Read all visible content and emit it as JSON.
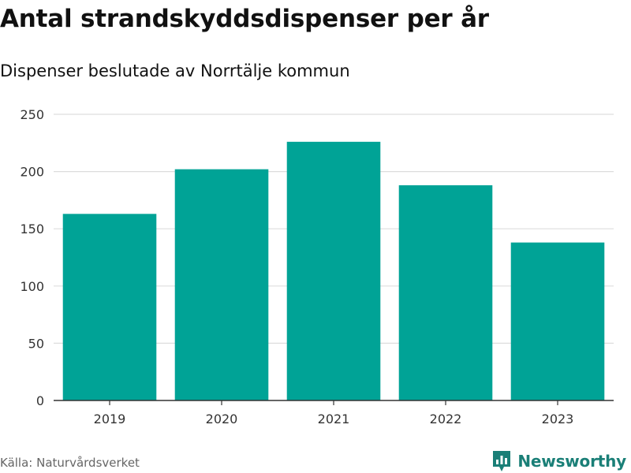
{
  "title": "Antal strandskyddsdispenser per år",
  "subtitle": "Dispenser beslutade av Norrtälje kommun",
  "source": "Källa: Naturvårdsverket",
  "brand": {
    "name": "Newsworthy",
    "color": "#1a7f77"
  },
  "colors": {
    "bar": "#00a396",
    "grid": "#dddddd",
    "axis": "#333333"
  },
  "chart_data": {
    "type": "bar",
    "title": "Antal strandskyddsdispenser per år",
    "subtitle": "Dispenser beslutade av Norrtälje kommun",
    "categories": [
      "2019",
      "2020",
      "2021",
      "2022",
      "2023"
    ],
    "values": [
      163,
      202,
      226,
      188,
      138
    ],
    "xlabel": "",
    "ylabel": "",
    "ylim": [
      0,
      250
    ],
    "yticks": [
      0,
      50,
      100,
      150,
      200,
      250
    ],
    "grid": true,
    "legend": "none"
  }
}
